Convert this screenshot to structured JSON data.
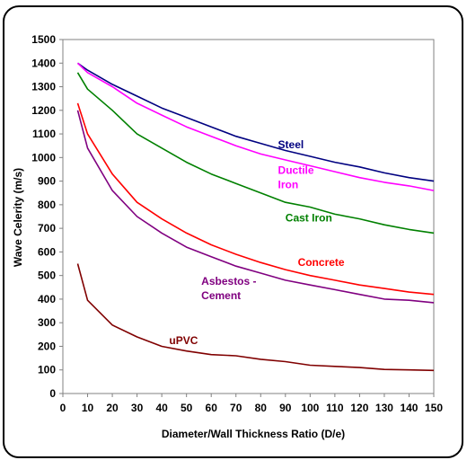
{
  "chart_data": {
    "type": "line",
    "title": "",
    "xlabel": "Diameter/Wall Thickness Ratio (D/e)",
    "ylabel": "Wave Celerity (m/s)",
    "xlim": [
      0,
      150
    ],
    "ylim": [
      0,
      1500
    ],
    "xticks": [
      0,
      10,
      20,
      30,
      40,
      50,
      60,
      70,
      80,
      90,
      100,
      110,
      120,
      130,
      140,
      150
    ],
    "yticks": [
      0,
      100,
      200,
      300,
      400,
      500,
      600,
      700,
      800,
      900,
      1000,
      1100,
      1200,
      1300,
      1400,
      1500
    ],
    "grid": false,
    "legend": "none",
    "series": [
      {
        "name": "Steel",
        "label_lines": [
          "Steel"
        ],
        "color": "#000080",
        "points": [
          [
            6,
            1400
          ],
          [
            10,
            1370
          ],
          [
            20,
            1310
          ],
          [
            30,
            1260
          ],
          [
            40,
            1210
          ],
          [
            50,
            1170
          ],
          [
            60,
            1130
          ],
          [
            70,
            1090
          ],
          [
            80,
            1060
          ],
          [
            90,
            1030
          ],
          [
            100,
            1005
          ],
          [
            110,
            980
          ],
          [
            120,
            960
          ],
          [
            130,
            935
          ],
          [
            140,
            915
          ],
          [
            150,
            900
          ]
        ]
      },
      {
        "name": "Ductile Iron",
        "label_lines": [
          "Ductile",
          "Iron"
        ],
        "color": "#ff00ff",
        "points": [
          [
            6,
            1400
          ],
          [
            10,
            1360
          ],
          [
            20,
            1300
          ],
          [
            30,
            1230
          ],
          [
            40,
            1180
          ],
          [
            50,
            1130
          ],
          [
            60,
            1090
          ],
          [
            70,
            1050
          ],
          [
            80,
            1015
          ],
          [
            90,
            990
          ],
          [
            100,
            965
          ],
          [
            110,
            940
          ],
          [
            120,
            915
          ],
          [
            130,
            895
          ],
          [
            140,
            880
          ],
          [
            150,
            860
          ]
        ]
      },
      {
        "name": "Cast Iron",
        "label_lines": [
          "Cast Iron"
        ],
        "color": "#008000",
        "points": [
          [
            6,
            1360
          ],
          [
            10,
            1290
          ],
          [
            20,
            1200
          ],
          [
            30,
            1100
          ],
          [
            40,
            1040
          ],
          [
            50,
            980
          ],
          [
            60,
            930
          ],
          [
            70,
            890
          ],
          [
            80,
            850
          ],
          [
            90,
            810
          ],
          [
            100,
            790
          ],
          [
            110,
            760
          ],
          [
            120,
            740
          ],
          [
            130,
            715
          ],
          [
            140,
            695
          ],
          [
            150,
            680
          ]
        ]
      },
      {
        "name": "Concrete",
        "label_lines": [
          "Concrete"
        ],
        "color": "#ff0000",
        "points": [
          [
            6,
            1230
          ],
          [
            10,
            1100
          ],
          [
            20,
            930
          ],
          [
            30,
            810
          ],
          [
            40,
            740
          ],
          [
            50,
            680
          ],
          [
            60,
            630
          ],
          [
            70,
            590
          ],
          [
            80,
            555
          ],
          [
            90,
            525
          ],
          [
            100,
            500
          ],
          [
            110,
            480
          ],
          [
            120,
            460
          ],
          [
            130,
            445
          ],
          [
            140,
            430
          ],
          [
            150,
            420
          ]
        ]
      },
      {
        "name": "Asbestos - Cement",
        "label_lines": [
          "Asbestos -",
          "Cement"
        ],
        "color": "#800080",
        "points": [
          [
            6,
            1200
          ],
          [
            10,
            1040
          ],
          [
            20,
            860
          ],
          [
            30,
            750
          ],
          [
            40,
            680
          ],
          [
            50,
            620
          ],
          [
            60,
            580
          ],
          [
            70,
            540
          ],
          [
            80,
            510
          ],
          [
            90,
            480
          ],
          [
            100,
            460
          ],
          [
            110,
            440
          ],
          [
            120,
            420
          ],
          [
            130,
            400
          ],
          [
            140,
            395
          ],
          [
            150,
            385
          ]
        ]
      },
      {
        "name": "uPVC",
        "label_lines": [
          "uPVC"
        ],
        "color": "#800000",
        "points": [
          [
            6,
            550
          ],
          [
            10,
            395
          ],
          [
            20,
            290
          ],
          [
            30,
            240
          ],
          [
            40,
            200
          ],
          [
            50,
            180
          ],
          [
            60,
            165
          ],
          [
            70,
            160
          ],
          [
            80,
            145
          ],
          [
            90,
            135
          ],
          [
            100,
            120
          ],
          [
            110,
            115
          ],
          [
            120,
            110
          ],
          [
            130,
            102
          ],
          [
            140,
            100
          ],
          [
            150,
            98
          ]
        ]
      }
    ]
  }
}
